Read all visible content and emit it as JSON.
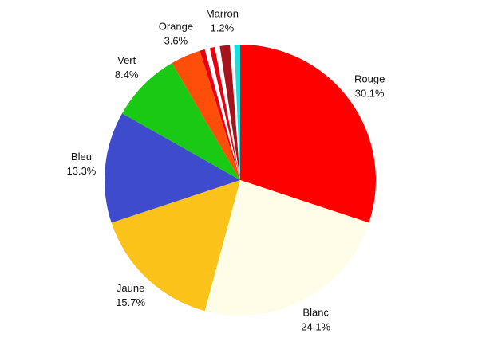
{
  "chart_data": {
    "type": "pie",
    "categories": [
      "Rouge",
      "Blanc",
      "Jaune",
      "Bleu",
      "Vert",
      "Orange",
      null,
      null,
      null,
      null,
      "Marron",
      null,
      null
    ],
    "values": [
      30.1,
      24.1,
      15.7,
      13.3,
      8.4,
      3.6,
      0.6,
      0.6,
      0.6,
      0.6,
      1.2,
      0.5,
      0.7
    ],
    "value_labels": [
      "30.1%",
      "24.1%",
      "15.7%",
      "13.3%",
      "8.4%",
      "3.6%",
      null,
      null,
      null,
      null,
      "1.2%",
      null,
      null
    ],
    "colors": [
      "#ff0000",
      "#fffde8",
      "#fbc21a",
      "#3e4bcc",
      "#19c914",
      "#ff4e0a",
      "#e8000e",
      "#ffffff",
      "#e8000e",
      "#ffffff",
      "#a6131d",
      "#ffffff",
      "#19dede"
    ]
  }
}
